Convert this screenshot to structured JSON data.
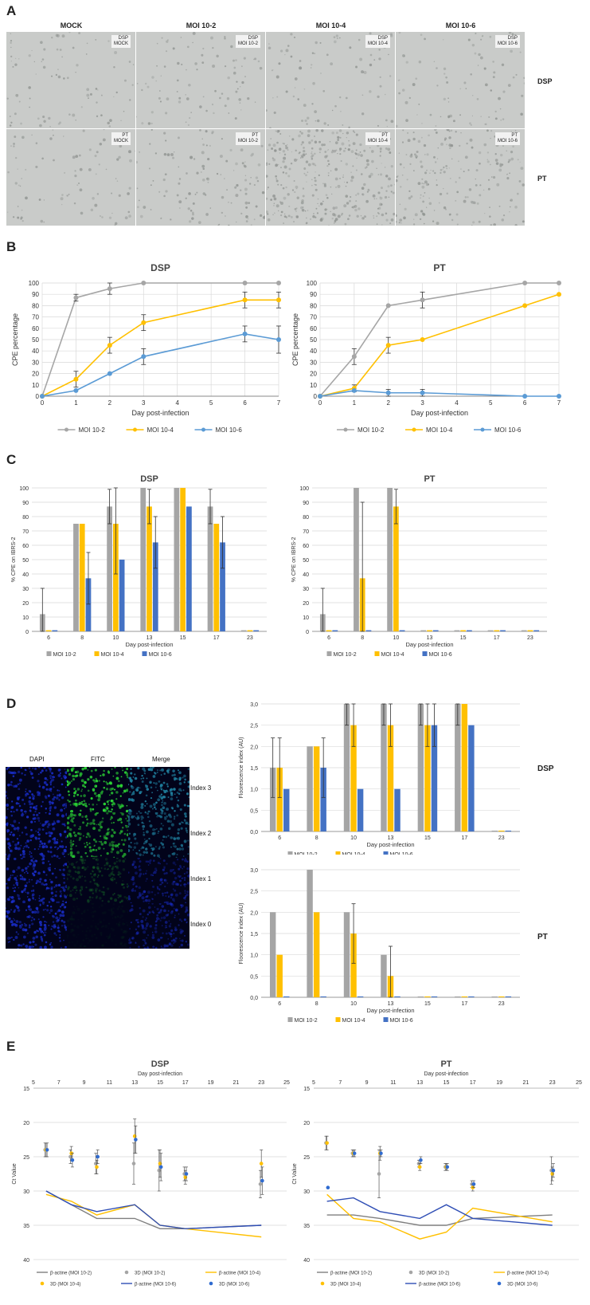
{
  "panels": {
    "a": "A",
    "b": "B",
    "c": "C",
    "d": "D",
    "e": "E"
  },
  "panelA": {
    "columns": [
      "MOCK",
      "MOI 10-2",
      "MOI 10-4",
      "MOI 10-6"
    ],
    "rows": [
      "DSP",
      "PT"
    ],
    "tags": [
      [
        "DSP\nMOCK",
        "DSP\nMOI 10-2",
        "DSP\nMOI 10-4",
        "DSP\nMOI 10-6"
      ],
      [
        "PT\nMOCK",
        "PT\nMOI 10-2",
        "PT\nMOI 10-4",
        "PT\nMOI 10-6"
      ]
    ],
    "colors": {
      "photo_bg": "#c9cbc9",
      "photo_grain": "#8e928f"
    }
  },
  "panelD_micro": {
    "headers": [
      "DAPI",
      "FITC",
      "Merge"
    ],
    "indices": [
      "Index 3",
      "Index 2",
      "Index 1",
      "Index 0"
    ],
    "colors": {
      "dapi": "#1a2fd0",
      "fitc": "#2bd335",
      "merge": "#1f7f9e"
    }
  },
  "chart_data": [
    {
      "id": "B-DSP",
      "type": "line",
      "title": "DSP",
      "xlabel": "Day post-infection",
      "ylabel": "CPE percentage",
      "xlim": [
        0,
        7
      ],
      "ylim": [
        0,
        100
      ],
      "yticks": [
        0,
        10,
        20,
        30,
        40,
        50,
        60,
        70,
        80,
        90,
        100
      ],
      "xticks": [
        0,
        1,
        2,
        3,
        4,
        5,
        6,
        7
      ],
      "series": [
        {
          "name": "MOI 10-2",
          "color": "#a6a6a6",
          "x": [
            0,
            1,
            2,
            3,
            6,
            7
          ],
          "y": [
            0,
            87,
            95,
            100,
            100,
            100
          ],
          "err": [
            0,
            3,
            5,
            0,
            0,
            0
          ]
        },
        {
          "name": "MOI 10-4",
          "color": "#ffc000",
          "x": [
            0,
            1,
            2,
            3,
            6,
            7
          ],
          "y": [
            0,
            15,
            45,
            65,
            85,
            85
          ],
          "err": [
            0,
            7,
            7,
            7,
            7,
            7
          ]
        },
        {
          "name": "MOI 10-6",
          "color": "#5b9bd5",
          "x": [
            0,
            1,
            2,
            3,
            6,
            7
          ],
          "y": [
            0,
            5,
            20,
            35,
            55,
            50
          ],
          "err": [
            0,
            0,
            0,
            7,
            7,
            12
          ]
        }
      ]
    },
    {
      "id": "B-PT",
      "type": "line",
      "title": "PT",
      "xlabel": "Day post-infection",
      "ylabel": "CPE percentage",
      "xlim": [
        0,
        7
      ],
      "ylim": [
        0,
        100
      ],
      "yticks": [
        0,
        10,
        20,
        30,
        40,
        50,
        60,
        70,
        80,
        90,
        100
      ],
      "xticks": [
        0,
        1,
        2,
        3,
        4,
        5,
        6,
        7
      ],
      "series": [
        {
          "name": "MOI 10-2",
          "color": "#a6a6a6",
          "x": [
            0,
            1,
            2,
            3,
            6,
            7
          ],
          "y": [
            0,
            35,
            80,
            85,
            100,
            100
          ],
          "err": [
            0,
            7,
            0,
            7,
            0,
            0
          ]
        },
        {
          "name": "MOI 10-4",
          "color": "#ffc000",
          "x": [
            0,
            1,
            2,
            3,
            6,
            7
          ],
          "y": [
            0,
            7,
            45,
            50,
            80,
            90
          ],
          "err": [
            0,
            3,
            7,
            0,
            0,
            0
          ]
        },
        {
          "name": "MOI 10-6",
          "color": "#5b9bd5",
          "x": [
            0,
            1,
            2,
            3,
            6,
            7
          ],
          "y": [
            0,
            5,
            3,
            3,
            0,
            0
          ],
          "err": [
            0,
            0,
            3,
            3,
            0,
            0
          ]
        }
      ]
    },
    {
      "id": "C-DSP",
      "type": "bar",
      "title": "DSP",
      "xlabel": "Day post-infection",
      "ylabel": "% CPE on IBRS-2",
      "ylim": [
        0,
        100
      ],
      "yticks": [
        0,
        10,
        20,
        30,
        40,
        50,
        60,
        70,
        80,
        90,
        100
      ],
      "categories": [
        "6",
        "8",
        "10",
        "13",
        "15",
        "17",
        "23"
      ],
      "series": [
        {
          "name": "MOI 10-2",
          "color": "#a5a5a5",
          "values": [
            12,
            75,
            87,
            100,
            100,
            87,
            0.8
          ],
          "err": [
            18,
            0,
            12,
            0,
            0,
            12,
            0
          ]
        },
        {
          "name": "MOI 10-4",
          "color": "#ffc000",
          "values": [
            0.8,
            75,
            75,
            87,
            100,
            75,
            0.8
          ],
          "err": [
            0,
            0,
            35,
            12,
            0,
            0,
            0
          ]
        },
        {
          "name": "MOI 10-6",
          "color": "#4472c4",
          "values": [
            0.8,
            37,
            50,
            62,
            87,
            62,
            0.8
          ],
          "err": [
            0,
            18,
            0,
            18,
            0,
            18,
            0
          ]
        }
      ]
    },
    {
      "id": "C-PT",
      "type": "bar",
      "title": "PT",
      "xlabel": "Day post-infection",
      "ylabel": "% CPE on IBRS-2",
      "ylim": [
        0,
        100
      ],
      "yticks": [
        0,
        10,
        20,
        30,
        40,
        50,
        60,
        70,
        80,
        90,
        100
      ],
      "categories": [
        "6",
        "8",
        "10",
        "13",
        "15",
        "17",
        "23"
      ],
      "series": [
        {
          "name": "MOI 10-2",
          "color": "#a5a5a5",
          "values": [
            12,
            100,
            100,
            0.8,
            0.8,
            0.8,
            0.8
          ],
          "err": [
            18,
            0,
            0,
            0,
            0,
            0,
            0
          ]
        },
        {
          "name": "MOI 10-4",
          "color": "#ffc000",
          "values": [
            0.8,
            37,
            87,
            0.8,
            0.8,
            0.8,
            0.8
          ],
          "err": [
            0,
            53,
            12,
            0,
            0,
            0,
            0
          ]
        },
        {
          "name": "MOI 10-6",
          "color": "#4472c4",
          "values": [
            0.8,
            0.8,
            0.8,
            0.8,
            0.8,
            0.8,
            0.8
          ],
          "err": [
            0,
            0,
            0,
            0,
            0,
            0,
            0
          ]
        }
      ]
    },
    {
      "id": "D-DSP",
      "type": "bar",
      "title": "DSP",
      "xlabel": "Day post-infection",
      "ylabel": "Floorescence index (AU)",
      "ylim": [
        0,
        3
      ],
      "yticks": [
        0,
        0.5,
        1,
        1.5,
        2,
        2.5,
        3
      ],
      "yticklabels": [
        "0,0",
        "0,5",
        "1,0",
        "1,5",
        "2,0",
        "2,5",
        "3,0"
      ],
      "categories": [
        "6",
        "8",
        "10",
        "13",
        "15",
        "17",
        "23"
      ],
      "series": [
        {
          "name": "MOI 10-2",
          "color": "#a5a5a5",
          "values": [
            1.5,
            2,
            3,
            3,
            3,
            3,
            0.02
          ],
          "err": [
            0.7,
            0,
            0.5,
            0.5,
            0.5,
            0.5,
            0
          ]
        },
        {
          "name": "MOI 10-4",
          "color": "#ffc000",
          "values": [
            1.5,
            2,
            2.5,
            2.5,
            2.5,
            3,
            0.02
          ],
          "err": [
            0.7,
            0,
            0.5,
            0.5,
            0.5,
            0,
            0
          ]
        },
        {
          "name": "MOI 10-6",
          "color": "#4472c4",
          "values": [
            1,
            1.5,
            1,
            1,
            2.5,
            2.5,
            0.02
          ],
          "err": [
            0,
            0.7,
            0,
            0,
            0.5,
            0,
            0
          ]
        }
      ]
    },
    {
      "id": "D-PT",
      "type": "bar",
      "title": "PT",
      "xlabel": "Day post-infection",
      "ylabel": "Floorescence index (AU)",
      "ylim": [
        0,
        3
      ],
      "yticks": [
        0,
        0.5,
        1,
        1.5,
        2,
        2.5,
        3
      ],
      "yticklabels": [
        "0,0",
        "0,5",
        "1,0",
        "1,5",
        "2,0",
        "2,5",
        "3,0"
      ],
      "categories": [
        "6",
        "8",
        "10",
        "13",
        "15",
        "17",
        "23"
      ],
      "series": [
        {
          "name": "MOI 10-2",
          "color": "#a5a5a5",
          "values": [
            2,
            3,
            2,
            1,
            0.02,
            0.02,
            0.02
          ],
          "err": [
            0,
            0,
            0,
            0,
            0,
            0,
            0
          ]
        },
        {
          "name": "MOI 10-4",
          "color": "#ffc000",
          "values": [
            1,
            2,
            1.5,
            0.5,
            0.02,
            0.02,
            0.02
          ],
          "err": [
            0,
            0,
            0.7,
            0.7,
            0,
            0,
            0
          ]
        },
        {
          "name": "MOI 10-6",
          "color": "#4472c4",
          "values": [
            0.02,
            0.02,
            0.02,
            0.02,
            0.02,
            0.02,
            0.02
          ],
          "err": [
            0,
            0,
            0,
            0,
            0,
            0,
            0
          ]
        }
      ]
    },
    {
      "id": "E-DSP",
      "type": "scatter",
      "title": "DSP",
      "xlabel": "Day post-infection",
      "ylabel": "Ct Value",
      "xlim": [
        5,
        25
      ],
      "xticks": [
        5,
        7,
        9,
        11,
        13,
        15,
        17,
        19,
        21,
        23,
        25
      ],
      "ylim": [
        15,
        40
      ],
      "yticks": [
        15,
        20,
        25,
        30,
        35,
        40
      ],
      "yreversed": true,
      "lines": [
        {
          "name": "β-actine (MOI 10-2)",
          "color": "#7f7f7f",
          "x": [
            6,
            8,
            10,
            13,
            15,
            17,
            23
          ],
          "y": [
            30,
            32,
            34,
            34,
            35.5,
            35.5,
            35
          ]
        },
        {
          "name": "β-actine (MOI 10-4)",
          "color": "#ffc000",
          "x": [
            6,
            8,
            10,
            13,
            15,
            17,
            23
          ],
          "y": [
            30.5,
            31.5,
            33.5,
            32,
            35,
            35.5,
            36.7
          ]
        },
        {
          "name": "β-actine (MOI 10-6)",
          "color": "#2f4eb5",
          "x": [
            6,
            8,
            10,
            13,
            15,
            17,
            23
          ],
          "y": [
            30,
            32,
            33,
            32,
            35,
            35.5,
            35
          ]
        }
      ],
      "points": [
        {
          "name": "3D (MOI 10-2)",
          "color": "#a5a5a5",
          "x": [
            6,
            8,
            10,
            13,
            15,
            17,
            23
          ],
          "y": [
            24,
            25,
            26,
            26,
            27,
            27.5,
            29
          ],
          "err": [
            1,
            1,
            1.5,
            3,
            3,
            1,
            2
          ]
        },
        {
          "name": "3D (MOI 10-4)",
          "color": "#ffc000",
          "x": [
            6,
            8,
            10,
            13,
            15,
            17,
            23
          ],
          "y": [
            24,
            24.5,
            26.5,
            22,
            26,
            28,
            26
          ],
          "err": [
            1,
            1,
            1,
            2.5,
            2,
            1,
            2
          ]
        },
        {
          "name": "3D (MOI 10-6)",
          "color": "#2f6bd0",
          "x": [
            6,
            8,
            10,
            13,
            15,
            17,
            23
          ],
          "y": [
            24,
            25.5,
            25,
            22.5,
            26.5,
            27.5,
            28.5
          ],
          "err": [
            1,
            1,
            1,
            2,
            2,
            1,
            2
          ]
        }
      ]
    },
    {
      "id": "E-PT",
      "type": "scatter",
      "title": "PT",
      "xlabel": "Day post-infection",
      "ylabel": "Ct Value",
      "xlim": [
        5,
        25
      ],
      "xticks": [
        5,
        7,
        9,
        11,
        13,
        15,
        17,
        19,
        21,
        23,
        25
      ],
      "ylim": [
        15,
        40
      ],
      "yticks": [
        15,
        20,
        25,
        30,
        35,
        40
      ],
      "yreversed": true,
      "lines": [
        {
          "name": "β-actine (MOI 10-2)",
          "color": "#7f7f7f",
          "x": [
            6,
            8,
            10,
            13,
            15,
            17,
            23
          ],
          "y": [
            33.5,
            33.5,
            34,
            35,
            35,
            34,
            33.5
          ]
        },
        {
          "name": "β-actine (MOI 10-4)",
          "color": "#ffc000",
          "x": [
            6,
            8,
            10,
            13,
            15,
            17,
            23
          ],
          "y": [
            30.5,
            34,
            34.5,
            37,
            36,
            32.5,
            34.5
          ]
        },
        {
          "name": "β-actine (MOI 10-6)",
          "color": "#2f4eb5",
          "x": [
            6,
            8,
            10,
            13,
            15,
            17,
            23
          ],
          "y": [
            31.5,
            31,
            33,
            34,
            32,
            34,
            35
          ]
        }
      ],
      "points": [
        {
          "name": "3D (MOI 10-2)",
          "color": "#a5a5a5",
          "x": [
            6,
            8,
            10,
            13,
            15,
            17,
            23
          ],
          "y": [
            23,
            24.5,
            27.5,
            26,
            26.5,
            29,
            27
          ],
          "err": [
            1,
            0.5,
            3.5,
            0.5,
            0.5,
            0.5,
            2
          ]
        },
        {
          "name": "3D (MOI 10-4)",
          "color": "#ffc000",
          "x": [
            6,
            8,
            10,
            13,
            15,
            17,
            23
          ],
          "y": [
            23,
            24.5,
            24.5,
            26.5,
            26.5,
            29.5,
            27.5
          ],
          "err": [
            1,
            0.5,
            1,
            0.5,
            0.5,
            0.5,
            1
          ]
        },
        {
          "name": "3D (MOI 10-6)",
          "color": "#2f6bd0",
          "x": [
            6,
            8,
            10,
            13,
            15,
            17,
            23
          ],
          "y": [
            29.5,
            24.5,
            24.5,
            25.5,
            26.5,
            29,
            27
          ],
          "err": [
            0,
            0.5,
            0.5,
            0.5,
            0.5,
            0.5,
            1
          ]
        }
      ]
    }
  ]
}
